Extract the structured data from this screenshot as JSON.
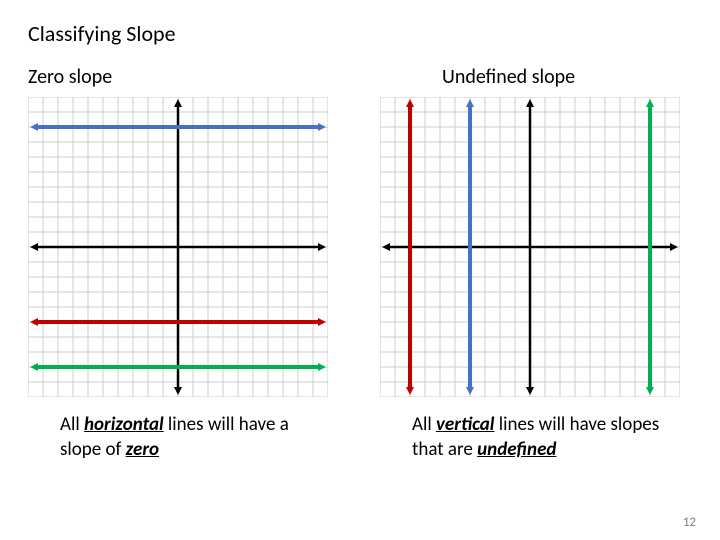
{
  "title": "Classifying Slope",
  "page_number": "12",
  "left": {
    "heading": "Zero slope",
    "caption_pre": "All ",
    "caption_kw1": "horizontal",
    "caption_mid": " lines will have a slope of  ",
    "caption_kw2": "zero",
    "chart": {
      "type": "coordinate-grid",
      "size": 300,
      "grid_range": 10,
      "background_color": "#ffffff",
      "grid_color": "#cccccc",
      "axis_color": "#000000",
      "axis_arrow": true,
      "lines": [
        {
          "orientation": "horizontal",
          "pos": 8,
          "color": "#4472c4",
          "width": 4
        },
        {
          "orientation": "horizontal",
          "pos": -5,
          "color": "#c00000",
          "width": 4
        },
        {
          "orientation": "horizontal",
          "pos": -8,
          "color": "#00b050",
          "width": 4
        }
      ]
    }
  },
  "right": {
    "heading": "Undefined slope",
    "caption_pre": "All ",
    "caption_kw1": "vertical",
    "caption_mid": " lines will have slopes that are ",
    "caption_kw2": "undefined",
    "chart": {
      "type": "coordinate-grid",
      "size": 300,
      "grid_range": 10,
      "background_color": "#ffffff",
      "grid_color": "#cccccc",
      "axis_color": "#000000",
      "axis_arrow": true,
      "lines": [
        {
          "orientation": "vertical",
          "pos": -8,
          "color": "#c00000",
          "width": 4
        },
        {
          "orientation": "vertical",
          "pos": -4,
          "color": "#4472c4",
          "width": 4
        },
        {
          "orientation": "vertical",
          "pos": 8,
          "color": "#00b050",
          "width": 4
        }
      ]
    }
  }
}
